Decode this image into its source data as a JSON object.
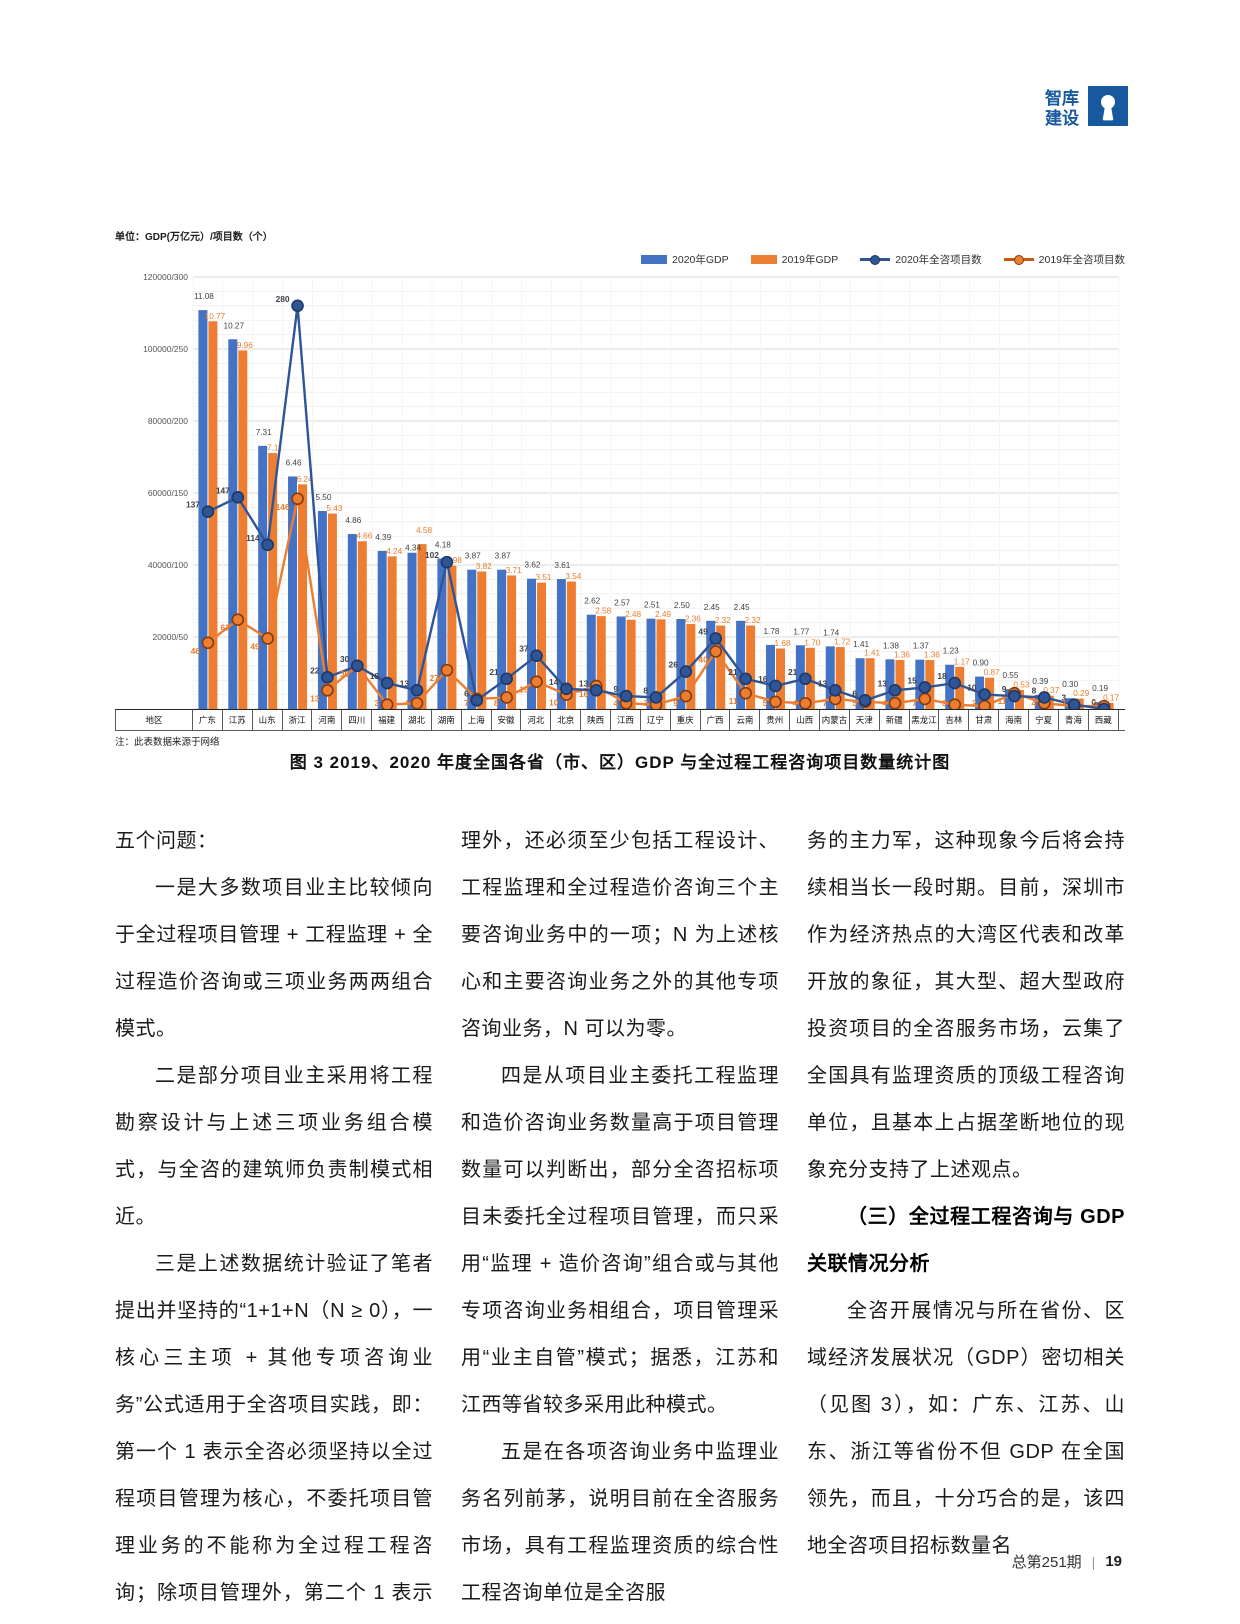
{
  "header": {
    "logo_line1": "智库",
    "logo_line2": "建设"
  },
  "chart": {
    "unit_label": "单位：GDP(万亿元）/项目数（个）",
    "legend": {
      "items": [
        {
          "label": "2020年GDP",
          "swatch": "bar-blue"
        },
        {
          "label": "2019年GDP",
          "swatch": "bar-orange"
        },
        {
          "label": "2020年全咨项目数",
          "swatch": "line-navy"
        },
        {
          "label": "2019年全咨项目数",
          "swatch": "line-orange"
        }
      ]
    },
    "y_ticks": [
      "120000/300",
      "100000/250",
      "80000/200",
      "60000/150",
      "40000/100",
      "20000/50"
    ],
    "region_header": "地区",
    "note": "注：此表数据来源于网络",
    "caption": "图 3  2019、2020 年度全国各省（市、区）GDP 与全过程工程咨询项目数量统计图",
    "colors": {
      "bar_2020": "#4472c4",
      "bar_2019": "#ed7d31",
      "line_2020": "#2f5597",
      "line_2020_marker_stroke": "#1f3864",
      "line_2019": "#ed7d31",
      "line_2019_marker_stroke": "#843c0c",
      "label_dark": "#3f4348",
      "label_orange": "#e97e2d",
      "grid_major": "#d9d9d9",
      "grid_minor": "#f1f1f1"
    }
  },
  "chart_data": {
    "type": "bar",
    "subtype": "combo-bar-line",
    "title": "2019、2020年度全国各省（市、区）GDP与全过程工程咨询项目数量统计图",
    "xlabel": "地区",
    "ylabel": "GDP(万亿元）/项目数（个）",
    "gdp_axis_max": 12,
    "project_axis_max": 300,
    "grid": true,
    "legend_position": "top-right",
    "categories": [
      "广东",
      "江苏",
      "山东",
      "浙江",
      "河南",
      "四川",
      "福建",
      "湖北",
      "湖南",
      "上海",
      "安徽",
      "河北",
      "北京",
      "陕西",
      "江西",
      "辽宁",
      "重庆",
      "广西",
      "云南",
      "贵州",
      "山西",
      "内蒙古",
      "天津",
      "新疆",
      "黑龙江",
      "吉林",
      "甘肃",
      "海南",
      "宁夏",
      "青海",
      "西藏"
    ],
    "series": [
      {
        "name": "2020年GDP",
        "type": "bar",
        "unit": "万亿元",
        "values": [
          11.08,
          10.27,
          7.31,
          6.46,
          5.5,
          4.86,
          4.39,
          4.34,
          4.18,
          3.87,
          3.87,
          3.62,
          3.61,
          2.62,
          2.57,
          2.51,
          2.5,
          2.45,
          2.45,
          1.78,
          1.77,
          1.74,
          1.41,
          1.38,
          1.37,
          1.23,
          0.9,
          0.55,
          0.39,
          0.3,
          0.19
        ]
      },
      {
        "name": "2019年GDP",
        "type": "bar",
        "unit": "万亿元",
        "values": [
          10.77,
          9.96,
          7.11,
          6.24,
          5.43,
          4.66,
          4.24,
          4.58,
          3.98,
          3.82,
          3.71,
          3.51,
          3.54,
          2.58,
          2.48,
          2.49,
          2.36,
          2.32,
          2.32,
          1.68,
          1.7,
          1.72,
          1.41,
          1.36,
          1.36,
          1.17,
          0.87,
          0.53,
          0.37,
          0.29,
          0.17
        ]
      },
      {
        "name": "2020年全咨项目数",
        "type": "line",
        "unit": "个",
        "values": [
          137,
          147,
          114,
          280,
          22,
          30,
          18,
          13,
          102,
          6,
          21,
          37,
          14,
          13,
          9,
          8,
          26,
          49,
          21,
          16,
          21,
          13,
          6,
          13,
          15,
          18,
          10,
          9,
          8,
          3,
          0
        ]
      },
      {
        "name": "2019年全咨项目数",
        "type": "line",
        "unit": "个",
        "values": [
          46,
          62,
          49,
          146,
          13,
          30,
          3,
          4,
          27,
          7,
          8,
          19,
          10,
          16,
          4,
          3,
          9,
          40,
          11,
          5,
          4,
          7,
          5,
          4,
          7,
          3,
          2,
          11,
          4,
          2,
          2
        ]
      }
    ]
  },
  "article": {
    "columns": [
      {
        "paragraphs": [
          {
            "text": "五个问题："
          },
          {
            "text": "一是大多数项目业主比较倾向于全过程项目管理 + 工程监理 + 全过程造价咨询或三项业务两两组合模式。"
          },
          {
            "text": "二是部分项目业主采用将工程勘察设计与上述三项业务组合模式，与全咨的建筑师负责制模式相近。"
          },
          {
            "text": "三是上述数据统计验证了笔者提出并坚持的“1+1+N（N ≥ 0），一核心三主项 + 其他专项咨询业务”公式适用于全咨项目实践，即：第一个 1 表示全咨必须坚持以全过程项目管理为核心，不委托项目管理业务的不能称为全过程工程咨询；除项目管理外，第二个 1 表示除项目管"
          }
        ]
      },
      {
        "paragraphs": [
          {
            "text": "理外，还必须至少包括工程设计、工程监理和全过程造价咨询三个主要咨询业务中的一项；N 为上述核心和主要咨询业务之外的其他专项咨询业务，N 可以为零。"
          },
          {
            "text": "四是从项目业主委托工程监理和造价咨询业务数量高于项目管理数量可以判断出，部分全咨招标项目未委托全过程项目管理，而只采用“监理 + 造价咨询”组合或与其他专项咨询业务相组合，项目管理采用“业主自管”模式；据悉，江苏和江西等省较多采用此种模式。"
          },
          {
            "text": "五是在各项咨询业务中监理业务名列前茅，说明目前在全咨服务市场，具有工程监理资质的综合性工程咨询单位是全咨服"
          }
        ]
      },
      {
        "paragraphs": [
          {
            "text": "务的主力军，这种现象今后将会持续相当长一段时期。目前，深圳市作为经济热点的大湾区代表和改革开放的象征，其大型、超大型政府投资项目的全咨服务市场，云集了全国具有监理资质的顶级工程咨询单位，且基本上占据垄断地位的现象充分支持了上述观点。"
          },
          {
            "text": "（三）全过程工程咨询与 GDP 关联情况分析"
          },
          {
            "text": "全咨开展情况与所在省份、区域经济发展状况（GDP）密切相关（见图 3），如：广东、江苏、山东、浙江等省份不但 GDP 在全国领先，而且，十分巧合的是，该四地全咨项目招标数量名"
          }
        ]
      }
    ]
  },
  "footer": {
    "issue": "总第251期",
    "separator": "|",
    "page": "19"
  }
}
